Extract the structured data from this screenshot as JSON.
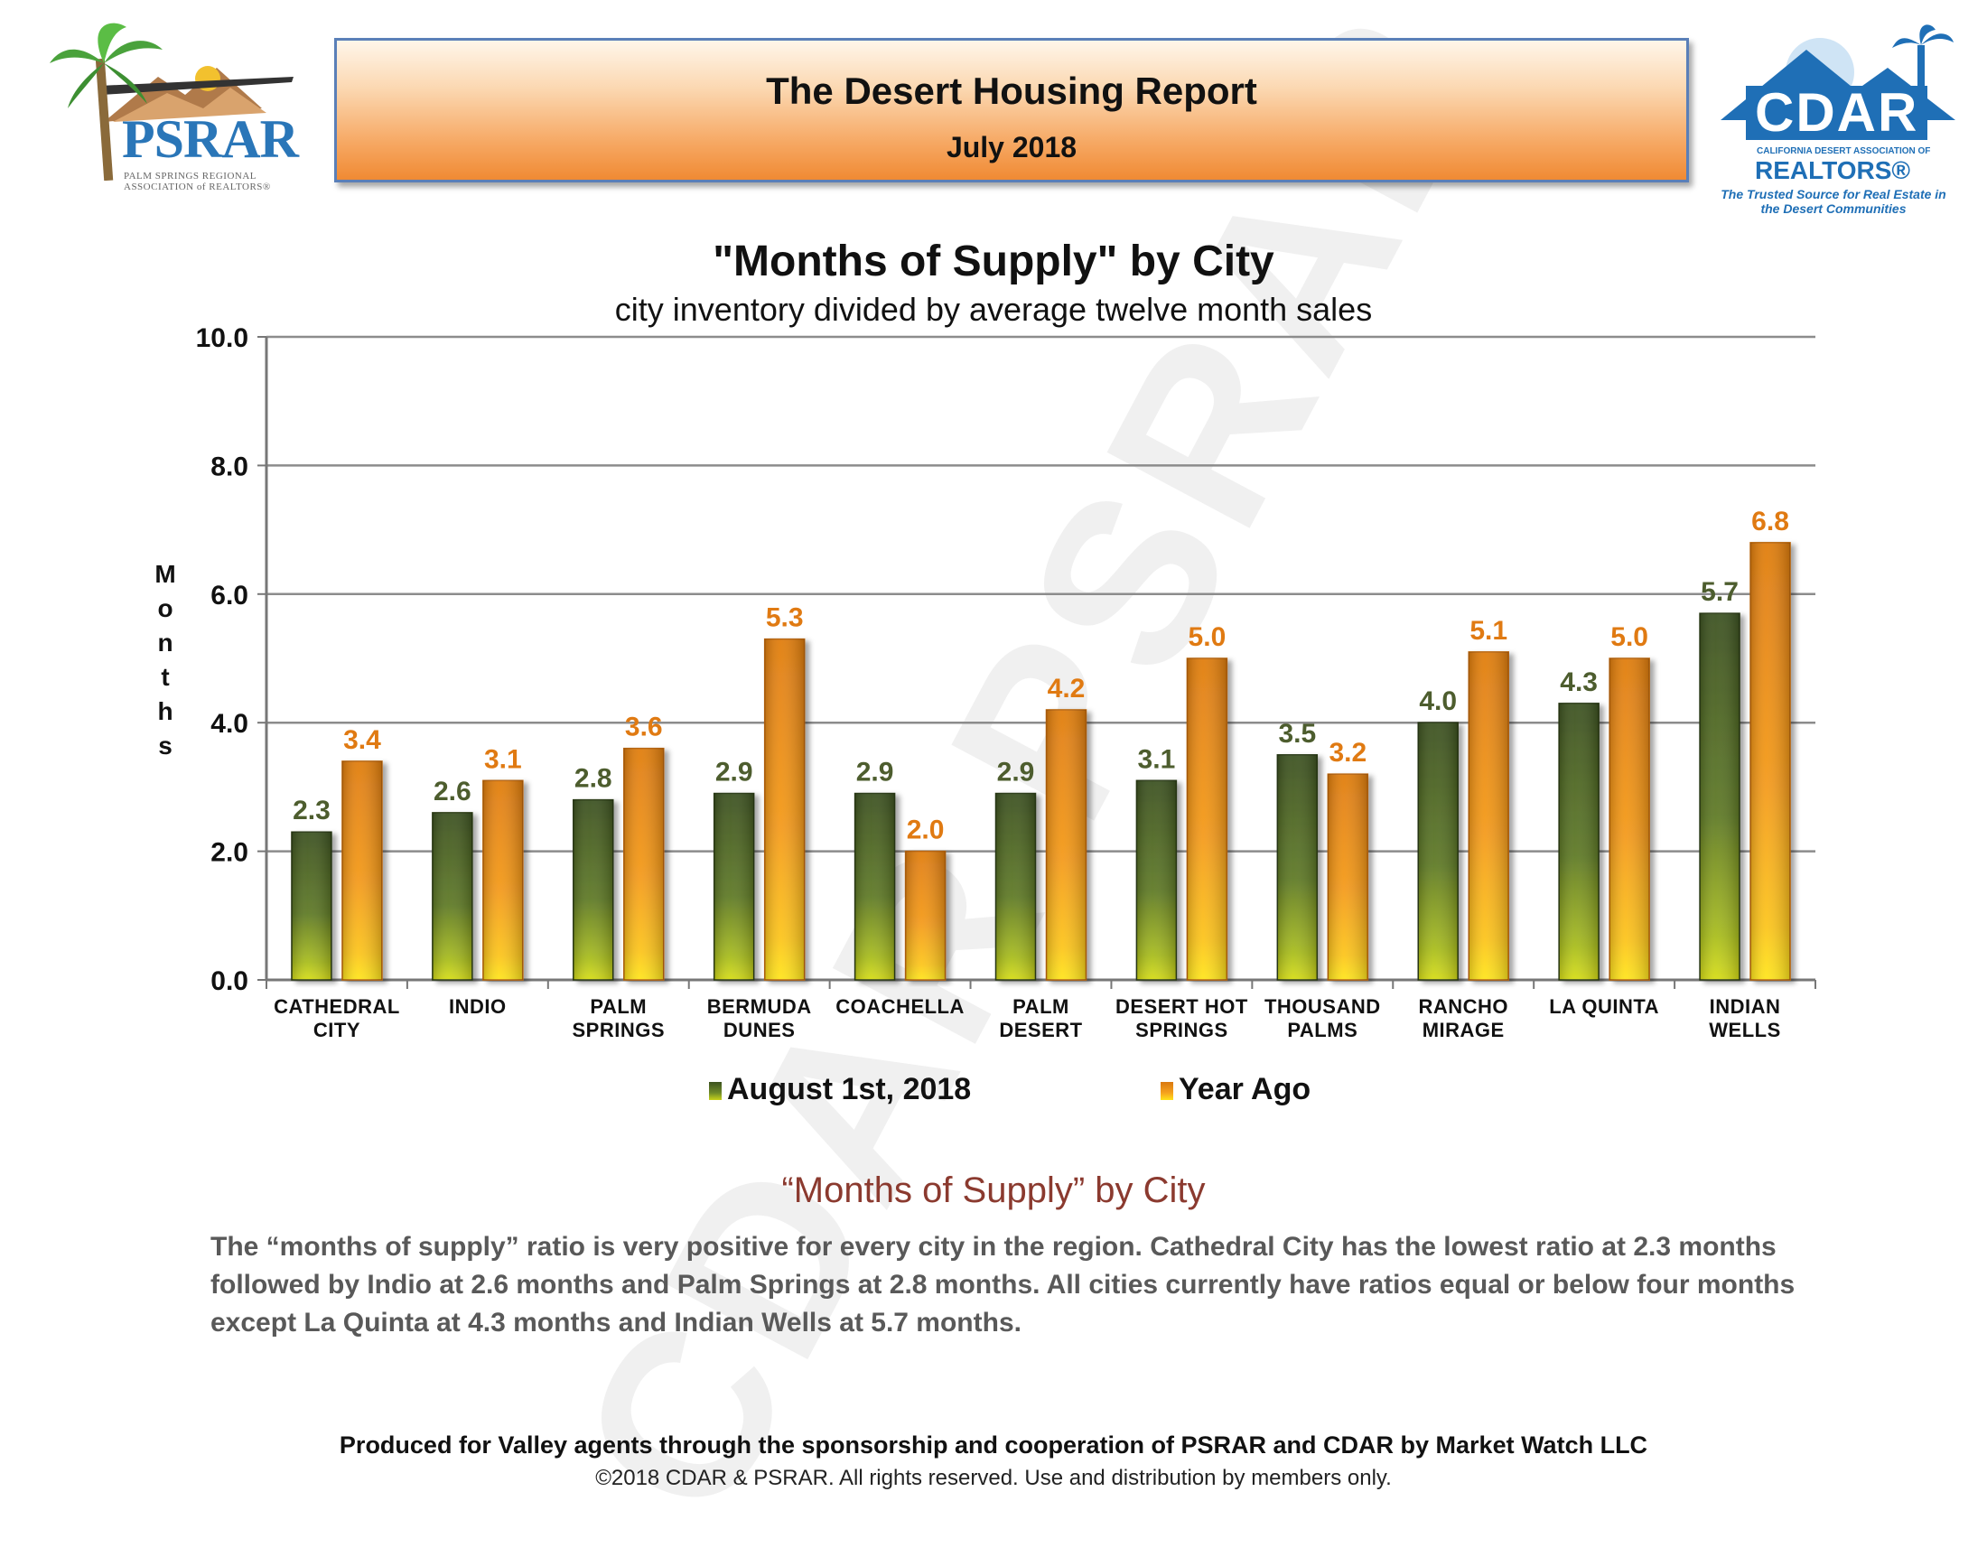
{
  "watermark": "CDAR PSRAR",
  "header": {
    "title": "The Desert Housing Report",
    "date": "July 2018"
  },
  "logos": {
    "left": {
      "name": "PSRAR",
      "subtitle": "PALM SPRINGS REGIONAL ASSOCIATION of REALTORS®"
    },
    "right": {
      "name": "CDAR",
      "line1": "CALIFORNIA DESERT ASSOCIATION OF",
      "line2": "REALTORS®",
      "tagline": "The Trusted Source for Real Estate in the Desert Communities"
    }
  },
  "colors": {
    "current_dark": "#3d5222",
    "current_light": "#c9d31c",
    "yearago_dark": "#e07d10",
    "yearago_light": "#ffe31c",
    "label_current": "#4d5d2e",
    "label_yearago": "#e07a12",
    "section_head": "#8b3a2f"
  },
  "chart_data": {
    "type": "bar",
    "title": "\"Months of Supply\" by City",
    "subtitle": "city inventory divided by average twelve month sales",
    "ylabel": "Months",
    "ylim": [
      0,
      10
    ],
    "yticks": [
      "0.0",
      "2.0",
      "4.0",
      "6.0",
      "8.0",
      "10.0"
    ],
    "categories": [
      [
        "CATHEDRAL",
        "CITY"
      ],
      [
        "INDIO"
      ],
      [
        "PALM",
        "SPRINGS"
      ],
      [
        "BERMUDA",
        "DUNES"
      ],
      [
        "COACHELLA"
      ],
      [
        "PALM",
        "DESERT"
      ],
      [
        "DESERT HOT",
        "SPRINGS"
      ],
      [
        "THOUSAND",
        "PALMS"
      ],
      [
        "RANCHO",
        "MIRAGE"
      ],
      [
        "LA QUINTA"
      ],
      [
        "INDIAN",
        "WELLS"
      ]
    ],
    "series": [
      {
        "name": "August 1st, 2018",
        "values": [
          2.3,
          2.6,
          2.8,
          2.9,
          2.9,
          2.9,
          3.1,
          3.5,
          4.0,
          4.3,
          5.7
        ]
      },
      {
        "name": "Year Ago",
        "values": [
          3.4,
          3.1,
          3.6,
          5.3,
          2.0,
          4.2,
          5.0,
          3.2,
          5.1,
          5.0,
          6.8
        ]
      }
    ],
    "grid": true,
    "legend": "bottom"
  },
  "section": {
    "heading": "“Months of Supply” by City",
    "paragraph": "The “months of supply” ratio is very positive for every city in the region. Cathedral City has the lowest ratio at 2.3 months followed by Indio at 2.6 months and Palm Springs at 2.8 months. All cities currently have ratios equal or below four months except La Quinta at 4.3 months and Indian Wells at 5.7 months."
  },
  "footer": {
    "line1": "Produced for Valley agents through the sponsorship and cooperation of PSRAR and CDAR by Market Watch LLC",
    "line2": "©2018 CDAR & PSRAR.  All rights reserved.  Use and distribution by members only."
  }
}
